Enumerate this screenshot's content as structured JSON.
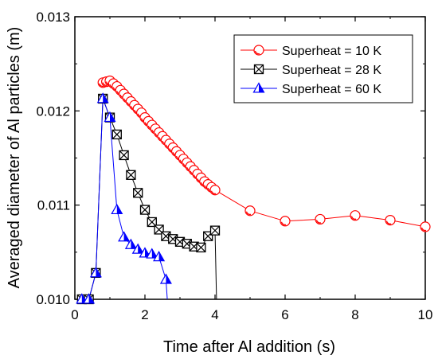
{
  "chart_data": {
    "type": "line",
    "title": "",
    "xlabel": "Time after Al addition (s)",
    "ylabel": "Averaged diameter of Al particles (m)",
    "xlim": [
      0,
      10
    ],
    "ylim": [
      0.01,
      0.013
    ],
    "xticks": [
      0,
      2,
      4,
      6,
      8,
      10
    ],
    "xtick_labels": [
      "0",
      "2",
      "4",
      "6",
      "8",
      "10"
    ],
    "yticks": [
      0.01,
      0.011,
      0.012,
      0.013
    ],
    "ytick_labels": [
      "0.010",
      "0.011",
      "0.012",
      "0.013"
    ],
    "grid": false,
    "legend_position": "top-right",
    "series": [
      {
        "name": "Superheat = 10 K",
        "color": "#ff0000",
        "marker": "circle",
        "x": [
          0.8,
          0.9,
          1.0,
          1.1,
          1.2,
          1.3,
          1.4,
          1.5,
          1.6,
          1.7,
          1.8,
          1.9,
          2.0,
          2.1,
          2.2,
          2.3,
          2.4,
          2.5,
          2.6,
          2.7,
          2.8,
          2.9,
          3.0,
          3.1,
          3.2,
          3.3,
          3.4,
          3.5,
          3.6,
          3.7,
          3.8,
          3.9,
          4.0,
          5.0,
          6.0,
          7.0,
          8.0,
          9.0,
          10.0
        ],
        "y": [
          0.0123,
          0.01231,
          0.01232,
          0.01229,
          0.01226,
          0.01222,
          0.01218,
          0.01214,
          0.0121,
          0.01206,
          0.01202,
          0.01198,
          0.01193,
          0.01189,
          0.01185,
          0.01181,
          0.01177,
          0.01173,
          0.01169,
          0.01165,
          0.01161,
          0.01157,
          0.01153,
          0.01149,
          0.01145,
          0.01141,
          0.01137,
          0.01133,
          0.01129,
          0.01125,
          0.01122,
          0.01119,
          0.01116,
          0.01094,
          0.01083,
          0.01085,
          0.01089,
          0.01084,
          0.01077
        ]
      },
      {
        "name": "Superheat = 28 K",
        "color": "#000000",
        "marker": "crossed-square",
        "x": [
          0.2,
          0.4,
          0.6,
          0.8,
          1.0,
          1.2,
          1.4,
          1.6,
          1.8,
          2.0,
          2.2,
          2.4,
          2.6,
          2.8,
          3.0,
          3.2,
          3.4,
          3.6,
          3.8,
          4.0
        ],
        "y": [
          0.01,
          0.01,
          0.01028,
          0.01213,
          0.01193,
          0.01175,
          0.01153,
          0.01132,
          0.01113,
          0.01095,
          0.01082,
          0.01074,
          0.01067,
          0.01064,
          0.01061,
          0.01059,
          0.01056,
          0.01055,
          0.01067,
          0.01073
        ]
      },
      {
        "name": "Superheat = 60 K",
        "color": "#0000ff",
        "marker": "triangle",
        "x": [
          0.2,
          0.4,
          0.6,
          0.8,
          1.0,
          1.2,
          1.4,
          1.6,
          1.8,
          2.0,
          2.2,
          2.4,
          2.6
        ],
        "y": [
          0.01,
          0.01,
          0.01028,
          0.01213,
          0.01193,
          0.01095,
          0.01066,
          0.01058,
          0.01053,
          0.01049,
          0.01048,
          0.01045,
          0.01021
        ]
      }
    ]
  }
}
